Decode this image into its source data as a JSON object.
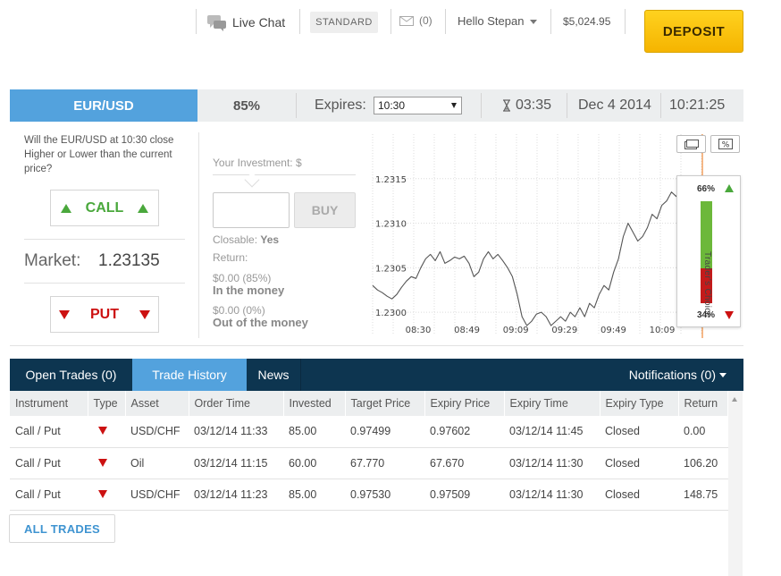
{
  "topbar": {
    "live_chat": "Live Chat",
    "account_type": "STANDARD",
    "messages": "(0)",
    "greeting": "Hello Stepan",
    "balance": "$5,024.95",
    "deposit": "DEPOSIT"
  },
  "asset_bar": {
    "asset": "EUR/USD",
    "payout": "85%",
    "expires_label": "Expires:",
    "expires_value": "10:30",
    "countdown": "03:35",
    "date": "Dec 4 2014",
    "time": "10:21:25"
  },
  "trade_panel": {
    "question": "Will the EUR/USD at 10:30 close Higher or Lower than the current price?",
    "call": "CALL",
    "put": "PUT",
    "market_label": "Market:",
    "market_value": "1.23135"
  },
  "investment": {
    "label": "Your Investment: $",
    "input_value": "",
    "buy": "BUY",
    "closable_label": "Closable:",
    "closable_value": "Yes",
    "return_label": "Return:",
    "in_money_value": "$0.00 (85%)",
    "in_money_label": "In the money",
    "out_money_value": "$0.00 (0%)",
    "out_money_label": "Out of the money"
  },
  "chart_data": {
    "type": "line",
    "y_ticks": [
      "1.2315",
      "1.2310",
      "1.2305",
      "1.2300"
    ],
    "x_ticks": [
      "08:30",
      "08:49",
      "09:09",
      "09:29",
      "09:49",
      "10:09"
    ],
    "ylim": [
      1.22975,
      1.232
    ],
    "series": [
      {
        "values": [
          1.2303,
          1.23025,
          1.23022,
          1.23018,
          1.23015,
          1.2302,
          1.23028,
          1.23035,
          1.2304,
          1.23038,
          1.2305,
          1.2306,
          1.23065,
          1.23058,
          1.23068,
          1.23055,
          1.23058,
          1.23062,
          1.2306,
          1.23063,
          1.23055,
          1.2304,
          1.23045,
          1.2306,
          1.23068,
          1.2306,
          1.23065,
          1.23058,
          1.2305,
          1.2304,
          1.2302,
          1.22995,
          1.22985,
          1.2299,
          1.22998,
          1.23,
          1.22995,
          1.22985,
          1.2299,
          1.22995,
          1.2299,
          1.23,
          1.22995,
          1.23005,
          1.22995,
          1.2301,
          1.23005,
          1.2302,
          1.2303,
          1.23025,
          1.23045,
          1.2306,
          1.23085,
          1.231,
          1.2309,
          1.2308,
          1.23085,
          1.23095,
          1.2311,
          1.23105,
          1.2312,
          1.23125,
          1.23135,
          1.2313,
          1.2314,
          1.2313,
          1.23135
        ]
      }
    ],
    "trader_choice": {
      "label": "Trader's Choice",
      "call_pct": "66%",
      "put_pct": "34%",
      "call_fraction": 0.66
    }
  },
  "tabs": [
    {
      "label": "Open Trades (0)"
    },
    {
      "label": "Trade History"
    },
    {
      "label": "News"
    }
  ],
  "notifications": "Notifications (0)",
  "table": {
    "headers": [
      "Instrument",
      "Type",
      "Asset",
      "Order Time",
      "Invested",
      "Target Price",
      "Expiry Price",
      "Expiry Time",
      "Expiry Type",
      "Return"
    ],
    "rows": [
      {
        "instrument": "Call / Put",
        "asset": "USD/CHF",
        "order_time": "03/12/14 11:33",
        "invested": "85.00",
        "target": "0.97499",
        "expiry_price": "0.97602",
        "expiry_time": "03/12/14 11:45",
        "expiry_type": "Closed",
        "return": "0.00"
      },
      {
        "instrument": "Call / Put",
        "asset": "Oil",
        "order_time": "03/12/14 11:15",
        "invested": "60.00",
        "target": "67.770",
        "expiry_price": "67.670",
        "expiry_time": "03/12/14 11:30",
        "expiry_type": "Closed",
        "return": "106.20"
      },
      {
        "instrument": "Call / Put",
        "asset": "USD/CHF",
        "order_time": "03/12/14 11:23",
        "invested": "85.00",
        "target": "0.97530",
        "expiry_price": "0.97509",
        "expiry_time": "03/12/14 11:30",
        "expiry_type": "Closed",
        "return": "148.75"
      }
    ]
  },
  "all_trades": "ALL TRADES",
  "colors": {
    "accent": "#53a2dd",
    "navy": "#0d3550",
    "call": "#4aa83c",
    "put": "#cc1111",
    "deposit": "#f5b400"
  }
}
